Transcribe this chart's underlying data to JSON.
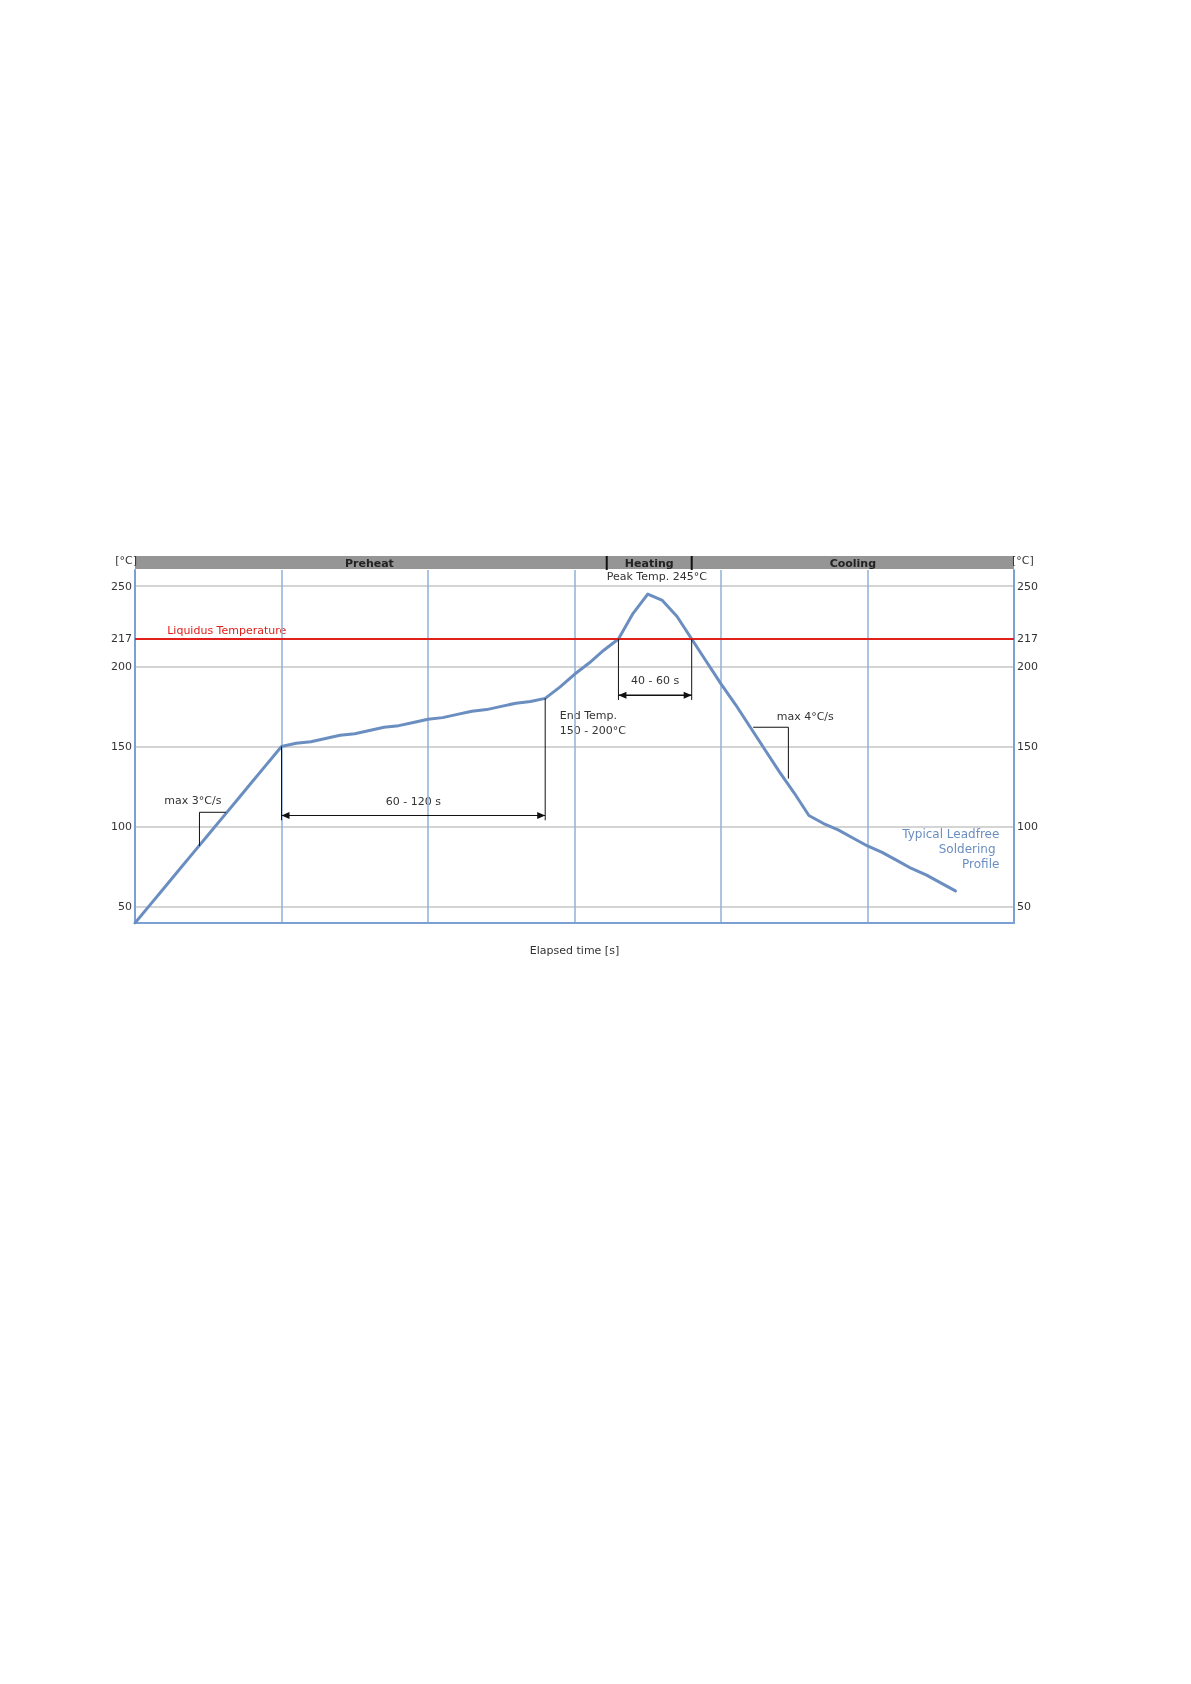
{
  "chart_data": {
    "type": "line",
    "xlabel": "Elapsed time [s]",
    "ylabel": "[°C]",
    "y2label": "[°C]",
    "categories": [
      null,
      null,
      null,
      null,
      null,
      null,
      null,
      null,
      null,
      null,
      null,
      null,
      null,
      null,
      null,
      null,
      null,
      null,
      null,
      null,
      null,
      null,
      null,
      null,
      null,
      null,
      null,
      null,
      null,
      null,
      null,
      null,
      null,
      null,
      null,
      null,
      null,
      null,
      null,
      null,
      null,
      null,
      null,
      null,
      null,
      null,
      null,
      null,
      null,
      null,
      null,
      null,
      null,
      null,
      null,
      null,
      null,
      null,
      null,
      null,
      null
    ],
    "series": [
      {
        "name": "Typical Leadfree Soldering Profile",
        "color": "#6a8ec0",
        "values": [
          40,
          51,
          62,
          73,
          84,
          95,
          106,
          117,
          128,
          139,
          150,
          152,
          153,
          155,
          157,
          158,
          160,
          162,
          163,
          165,
          167,
          168,
          170,
          172,
          173,
          175,
          177,
          178,
          180,
          187,
          195,
          202,
          210,
          217,
          233,
          245,
          241,
          231,
          217,
          203,
          189,
          176,
          162,
          148,
          134,
          121,
          107,
          102,
          98,
          93,
          88,
          84,
          79,
          74,
          70,
          65,
          60,
          null,
          null,
          null,
          null
        ]
      }
    ],
    "ylim": [
      40,
      260
    ],
    "yticks": [
      50,
      100,
      150,
      200,
      217,
      250
    ],
    "y2lim": [
      40,
      260
    ],
    "y2ticks": [
      50,
      100,
      150,
      200,
      217,
      250
    ],
    "tick_labels": "y",
    "grid": true,
    "legend": false,
    "marker": "none",
    "line_style": "solid",
    "ref_lines": [
      {
        "axis": "y",
        "value": 217,
        "label": "Liquidus Temperature",
        "color": "#e0201b"
      }
    ],
    "annotations": [
      "Peak Temp. 245°C",
      "End Temp.\n150 - 200°C",
      "60 - 120 s",
      "40 - 60 s",
      "max 3°C/s",
      "max 4°C/s",
      "Preheat",
      "Heating",
      "Cooling"
    ]
  }
}
